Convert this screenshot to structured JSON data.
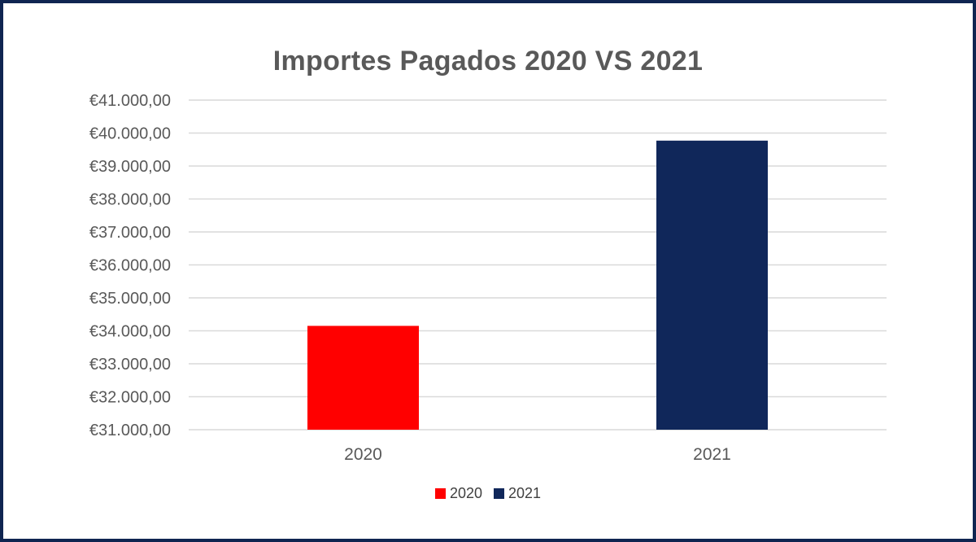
{
  "chart_data": {
    "type": "bar",
    "title": "Importes Pagados 2020 VS 2021",
    "xlabel": "",
    "ylabel": "",
    "categories": [
      "2020",
      "2021"
    ],
    "values": [
      34150,
      39770
    ],
    "colors": [
      "#ff0000",
      "#10275a"
    ],
    "ylim": [
      31000,
      41000
    ],
    "yticks": [
      31000,
      32000,
      33000,
      34000,
      35000,
      36000,
      37000,
      38000,
      39000,
      40000,
      41000
    ],
    "ytick_labels": [
      "€31.000,00",
      "€32.000,00",
      "€33.000,00",
      "€34.000,00",
      "€35.000,00",
      "€36.000,00",
      "€37.000,00",
      "€38.000,00",
      "€39.000,00",
      "€40.000,00",
      "€41.000,00"
    ],
    "grid": true,
    "legend_position": "bottom",
    "legend": [
      {
        "label": "2020",
        "color": "#ff0000"
      },
      {
        "label": "2021",
        "color": "#10275a"
      }
    ]
  }
}
